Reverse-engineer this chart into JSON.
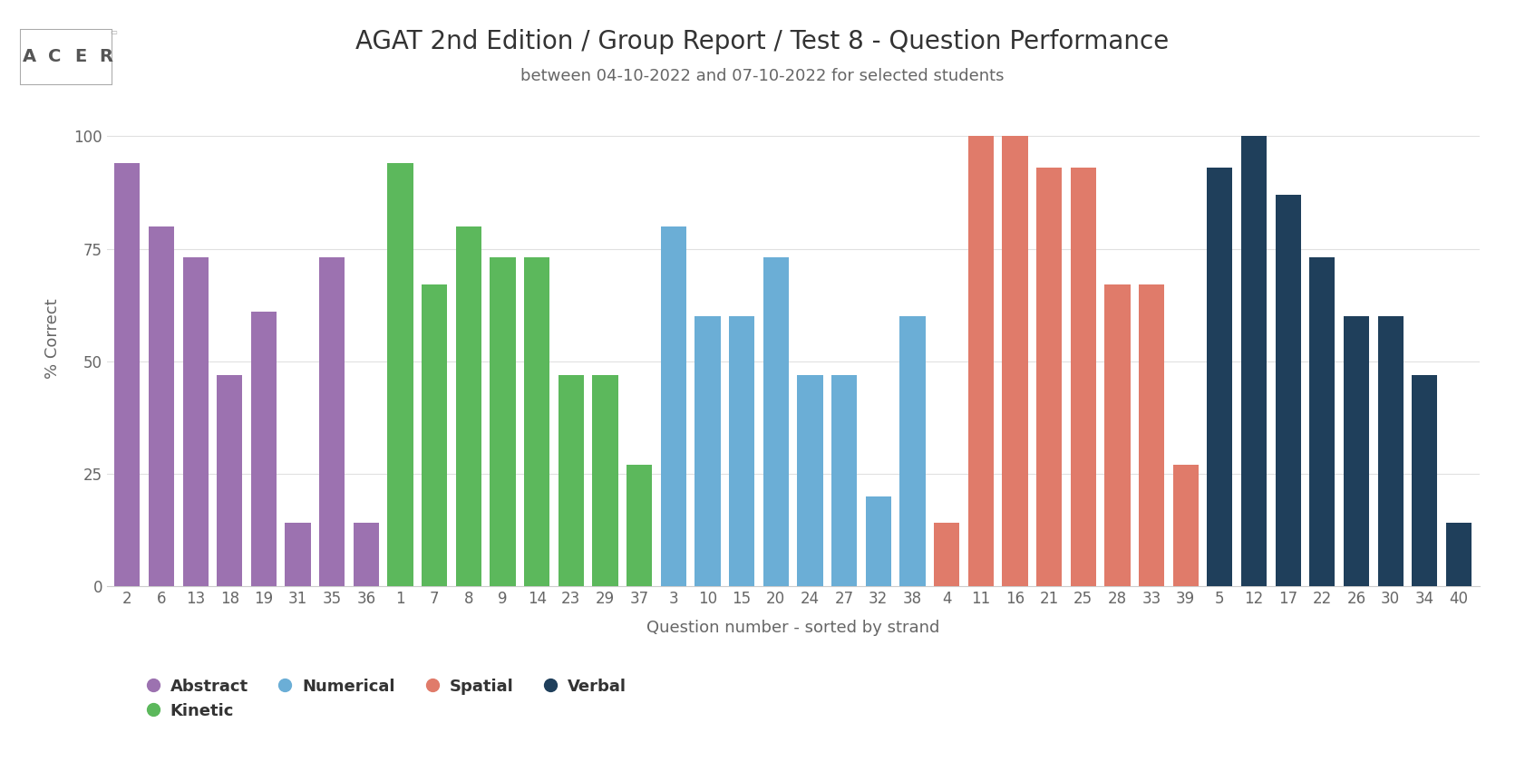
{
  "title": "AGAT 2nd Edition / Group Report / Test 8 - Question Performance",
  "subtitle": "between 04-10-2022 and 07-10-2022 for selected students",
  "xlabel": "Question number - sorted by strand",
  "ylabel": "% Correct",
  "bars": [
    {
      "label": "2",
      "value": 94,
      "color": "#9c72b0"
    },
    {
      "label": "6",
      "value": 80,
      "color": "#9c72b0"
    },
    {
      "label": "13",
      "value": 73,
      "color": "#9c72b0"
    },
    {
      "label": "18",
      "value": 47,
      "color": "#9c72b0"
    },
    {
      "label": "19",
      "value": 61,
      "color": "#9c72b0"
    },
    {
      "label": "31",
      "value": 14,
      "color": "#9c72b0"
    },
    {
      "label": "35",
      "value": 73,
      "color": "#9c72b0"
    },
    {
      "label": "36",
      "value": 14,
      "color": "#9c72b0"
    },
    {
      "label": "1",
      "value": 94,
      "color": "#5cb85c"
    },
    {
      "label": "7",
      "value": 67,
      "color": "#5cb85c"
    },
    {
      "label": "8",
      "value": 80,
      "color": "#5cb85c"
    },
    {
      "label": "9",
      "value": 73,
      "color": "#5cb85c"
    },
    {
      "label": "14",
      "value": 73,
      "color": "#5cb85c"
    },
    {
      "label": "23",
      "value": 47,
      "color": "#5cb85c"
    },
    {
      "label": "29",
      "value": 47,
      "color": "#5cb85c"
    },
    {
      "label": "37",
      "value": 27,
      "color": "#5cb85c"
    },
    {
      "label": "3",
      "value": 80,
      "color": "#6baed6"
    },
    {
      "label": "10",
      "value": 60,
      "color": "#6baed6"
    },
    {
      "label": "15",
      "value": 60,
      "color": "#6baed6"
    },
    {
      "label": "20",
      "value": 73,
      "color": "#6baed6"
    },
    {
      "label": "24",
      "value": 47,
      "color": "#6baed6"
    },
    {
      "label": "27",
      "value": 47,
      "color": "#6baed6"
    },
    {
      "label": "32",
      "value": 20,
      "color": "#6baed6"
    },
    {
      "label": "38",
      "value": 60,
      "color": "#6baed6"
    },
    {
      "label": "4",
      "value": 14,
      "color": "#e07b6a"
    },
    {
      "label": "11",
      "value": 100,
      "color": "#e07b6a"
    },
    {
      "label": "16",
      "value": 100,
      "color": "#e07b6a"
    },
    {
      "label": "21",
      "value": 93,
      "color": "#e07b6a"
    },
    {
      "label": "25",
      "value": 93,
      "color": "#e07b6a"
    },
    {
      "label": "28",
      "value": 67,
      "color": "#e07b6a"
    },
    {
      "label": "33",
      "value": 67,
      "color": "#e07b6a"
    },
    {
      "label": "39",
      "value": 27,
      "color": "#e07b6a"
    },
    {
      "label": "5",
      "value": 93,
      "color": "#1f3f5b"
    },
    {
      "label": "12",
      "value": 100,
      "color": "#1f3f5b"
    },
    {
      "label": "17",
      "value": 87,
      "color": "#1f3f5b"
    },
    {
      "label": "22",
      "value": 73,
      "color": "#1f3f5b"
    },
    {
      "label": "26",
      "value": 60,
      "color": "#1f3f5b"
    },
    {
      "label": "30",
      "value": 60,
      "color": "#1f3f5b"
    },
    {
      "label": "34",
      "value": 47,
      "color": "#1f3f5b"
    },
    {
      "label": "40",
      "value": 14,
      "color": "#1f3f5b"
    }
  ],
  "strand_groups": [
    {
      "name": "Abstract",
      "color": "#9c72b0",
      "count": 8
    },
    {
      "name": "Kinetic",
      "color": "#5cb85c",
      "count": 8
    },
    {
      "name": "Numerical",
      "color": "#6baed6",
      "count": 8
    },
    {
      "name": "Spatial",
      "color": "#e07b6a",
      "count": 8
    },
    {
      "name": "Verbal",
      "color": "#1f3f5b",
      "count": 8
    }
  ],
  "background_color": "#ffffff",
  "grid_color": "#e0e0e0",
  "title_fontsize": 20,
  "subtitle_fontsize": 13,
  "axis_label_fontsize": 13,
  "tick_fontsize": 12
}
